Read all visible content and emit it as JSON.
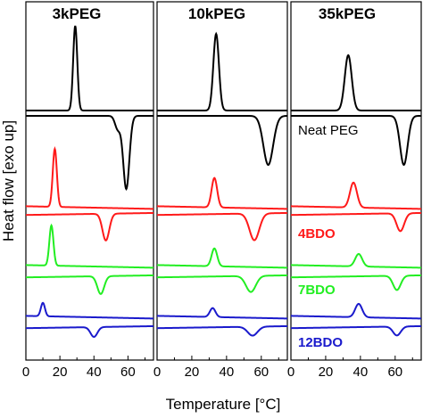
{
  "chart_data": {
    "type": "line",
    "xlabel": "Temperature [°C]",
    "ylabel": "Heat flow [exo up]",
    "xlim": [
      0,
      75
    ],
    "x_ticks": [
      0,
      20,
      40,
      60
    ],
    "grid": false,
    "panels": [
      {
        "title": "3kPEG",
        "x_tick_labels": [
          "0",
          "20",
          "40",
          "60"
        ]
      },
      {
        "title": "10kPEG",
        "x_tick_labels": [
          "0",
          "20",
          "40",
          "60"
        ]
      },
      {
        "title": "35kPEG",
        "x_tick_labels": [
          "0",
          "20",
          "40",
          "60"
        ]
      }
    ],
    "series": [
      {
        "name": "Neat PEG",
        "color": "#000000"
      },
      {
        "name": "4BDO",
        "color": "#ff1a1a"
      },
      {
        "name": "7BDO",
        "color": "#22ee22"
      },
      {
        "name": "12BDO",
        "color": "#1a1acc"
      }
    ],
    "peaks": {
      "3kPEG": {
        "Neat PEG": {
          "crystallization_peak": 29,
          "melting_peaks": [
            54,
            59
          ]
        },
        "4BDO": {
          "crystallization_peak": 17,
          "melting_peak": 47
        },
        "7BDO": {
          "crystallization_peak": 15,
          "melting_peak": 44
        },
        "12BDO": {
          "crystallization_peak": 10,
          "melting_peak": 40
        }
      },
      "10kPEG": {
        "Neat PEG": {
          "crystallization_peak": 34,
          "melting_peak": 64
        },
        "4BDO": {
          "crystallization_peak": 33,
          "melting_peak": 56
        },
        "7BDO": {
          "crystallization_peak": 33,
          "melting_peak": 54
        },
        "12BDO": {
          "crystallization_peak": 32,
          "melting_peak": 55
        }
      },
      "35kPEG": {
        "Neat PEG": {
          "crystallization_peak": 33,
          "melting_peak": 65
        },
        "4BDO": {
          "crystallization_peak": 36,
          "melting_peak": 63
        },
        "7BDO": {
          "crystallization_peak": 39,
          "melting_peak": 61
        },
        "12BDO": {
          "crystallization_peak": 39,
          "melting_peak": 61
        }
      }
    },
    "legend_placement": "inline labels in right panel"
  }
}
